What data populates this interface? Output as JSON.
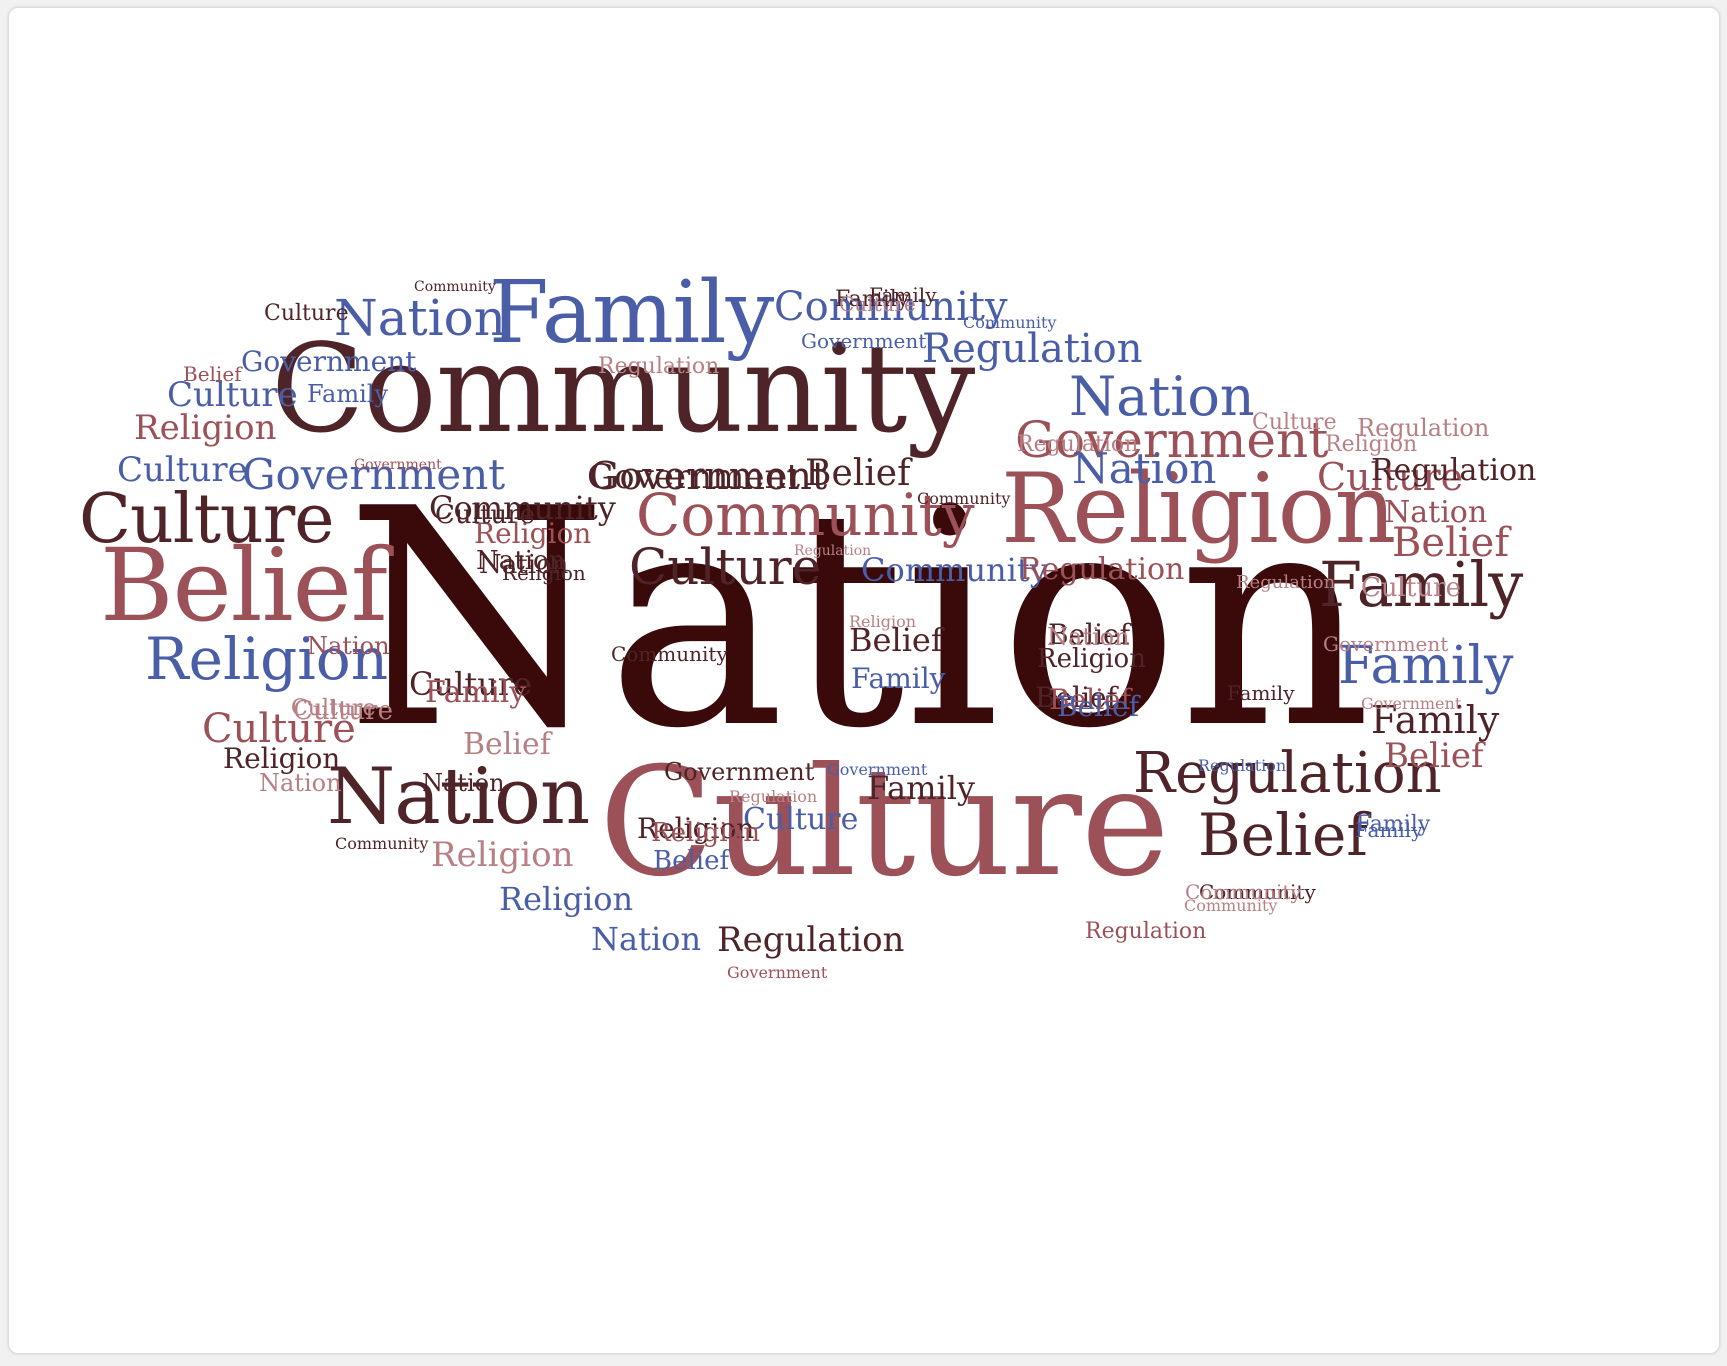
{
  "palette": {
    "dark": "#3a0a0a",
    "brown": "#4f2428",
    "rose": "#9b5157",
    "pink": "#b88085",
    "blue": "#4a5ea8"
  },
  "words": [
    {
      "text": "Nation",
      "color": "dark"
    },
    {
      "text": "Community",
      "color": "brown"
    },
    {
      "text": "Culture",
      "color": "rose"
    },
    {
      "text": "Religion",
      "color": "rose"
    },
    {
      "text": "Family",
      "color": "blue"
    },
    {
      "text": "Belief",
      "color": "rose"
    },
    {
      "text": "Nation",
      "color": "brown"
    },
    {
      "text": "Culture",
      "color": "brown"
    },
    {
      "text": "Community",
      "color": "rose"
    },
    {
      "text": "Regulation",
      "color": "brown"
    },
    {
      "text": "Government",
      "color": "rose"
    },
    {
      "text": "Belief",
      "color": "brown"
    },
    {
      "text": "Religion",
      "color": "blue"
    },
    {
      "text": "Family",
      "color": "brown"
    },
    {
      "text": "Nation",
      "color": "blue"
    },
    {
      "text": "Nation",
      "color": "blue"
    },
    {
      "text": "Government",
      "color": "blue"
    },
    {
      "text": "Regulation",
      "color": "blue"
    },
    {
      "text": "Culture",
      "color": "brown"
    },
    {
      "text": "Government",
      "color": "brown"
    },
    {
      "text": "Culture",
      "color": "rose"
    },
    {
      "text": "Family",
      "color": "blue"
    },
    {
      "text": "Religion",
      "color": "rose"
    },
    {
      "text": "Belief",
      "color": "brown"
    },
    {
      "text": "Nation",
      "color": "rose"
    },
    {
      "text": "Belief",
      "color": "rose"
    },
    {
      "text": "Family",
      "color": "brown"
    },
    {
      "text": "Community",
      "color": "blue"
    },
    {
      "text": "Culture",
      "color": "blue"
    },
    {
      "text": "Culture",
      "color": "blue"
    },
    {
      "text": "Community",
      "color": "blue"
    },
    {
      "text": "Community",
      "color": "brown"
    },
    {
      "text": "Regulation",
      "color": "rose"
    },
    {
      "text": "Religion",
      "color": "rose"
    },
    {
      "text": "Government",
      "color": "blue"
    },
    {
      "text": "Culture",
      "color": "blue"
    },
    {
      "text": "Family",
      "color": "brown"
    },
    {
      "text": "Belief",
      "color": "rose"
    },
    {
      "text": "Nation",
      "color": "blue"
    },
    {
      "text": "Regulation",
      "color": "brown"
    },
    {
      "text": "Belief",
      "color": "brown"
    },
    {
      "text": "Regulation",
      "color": "pink"
    },
    {
      "text": "Religion",
      "color": "pink"
    },
    {
      "text": "Religion",
      "color": "blue"
    },
    {
      "text": "Nation",
      "color": "blue"
    },
    {
      "text": "Nation",
      "color": "brown"
    },
    {
      "text": "Family",
      "color": "blue"
    },
    {
      "text": "Regulation",
      "color": "pink"
    },
    {
      "text": "Culture",
      "color": "brown"
    },
    {
      "text": "Culture",
      "color": "brown"
    },
    {
      "text": "Religion",
      "color": "brown"
    },
    {
      "text": "Nation",
      "color": "brown"
    },
    {
      "text": "Religion",
      "color": "brown"
    },
    {
      "text": "Family",
      "color": "rose"
    },
    {
      "text": "Belief",
      "color": "pink"
    },
    {
      "text": "Belief",
      "color": "brown"
    },
    {
      "text": "Belief",
      "color": "brown"
    },
    {
      "text": "Government",
      "color": "brown"
    },
    {
      "text": "Community",
      "color": "brown"
    },
    {
      "text": "Religion",
      "color": "brown"
    },
    {
      "text": "Belief",
      "color": "blue"
    },
    {
      "text": "Culture",
      "color": "pink"
    },
    {
      "text": "Family",
      "color": "brown"
    },
    {
      "text": "Culture",
      "color": "pink"
    },
    {
      "text": "Nation",
      "color": "pink"
    },
    {
      "text": "Nation",
      "color": "pink"
    },
    {
      "text": "Religion",
      "color": "brown"
    },
    {
      "text": "Religion",
      "color": "pink"
    },
    {
      "text": "Community",
      "color": "brown"
    },
    {
      "text": "Culture",
      "color": "pink"
    },
    {
      "text": "Culture",
      "color": "brown"
    },
    {
      "text": "Culture",
      "color": "rose"
    },
    {
      "text": "Culture",
      "color": "pink"
    },
    {
      "text": "Nation",
      "color": "rose"
    },
    {
      "text": "Nation",
      "color": "brown"
    },
    {
      "text": "Family",
      "color": "blue"
    },
    {
      "text": "Family",
      "color": "brown"
    },
    {
      "text": "Family",
      "color": "blue"
    },
    {
      "text": "Family",
      "color": "brown"
    },
    {
      "text": "Religion",
      "color": "pink"
    },
    {
      "text": "Religion",
      "color": "rose"
    },
    {
      "text": "Belief",
      "color": "rose"
    },
    {
      "text": "Belief",
      "color": "blue"
    },
    {
      "text": "Belief",
      "color": "rose"
    },
    {
      "text": "Regulation",
      "color": "pink"
    },
    {
      "text": "Regulation",
      "color": "pink"
    },
    {
      "text": "Regulation",
      "color": "pink"
    },
    {
      "text": "Regulation",
      "color": "brown"
    },
    {
      "text": "Regulation",
      "color": "rose"
    },
    {
      "text": "Regulation",
      "color": "pink"
    },
    {
      "text": "Regulation",
      "color": "blue"
    },
    {
      "text": "Government",
      "color": "rose"
    },
    {
      "text": "Government",
      "color": "brown"
    },
    {
      "text": "Government",
      "color": "pink"
    },
    {
      "text": "Government",
      "color": "pink"
    },
    {
      "text": "Government",
      "color": "rose"
    },
    {
      "text": "Government",
      "color": "blue"
    },
    {
      "text": "Community",
      "color": "brown"
    },
    {
      "text": "Community",
      "color": "brown"
    },
    {
      "text": "Community",
      "color": "blue"
    },
    {
      "text": "Community",
      "color": "pink"
    },
    {
      "text": "Community",
      "color": "brown"
    },
    {
      "text": "Community",
      "color": "pink"
    },
    {
      "text": "Culture",
      "color": "pink"
    },
    {
      "text": "Culture",
      "color": "pink"
    },
    {
      "text": "Family",
      "color": "blue"
    },
    {
      "text": "Government",
      "color": "blue"
    }
  ]
}
